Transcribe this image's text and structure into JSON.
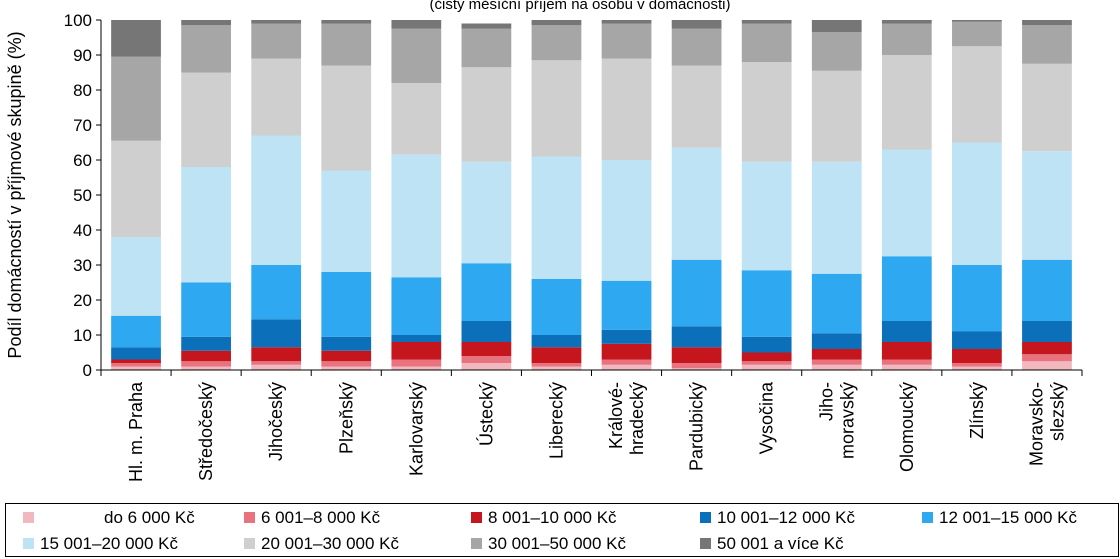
{
  "chart_data": {
    "type": "bar",
    "stacked": true,
    "subtitle": "(čistý měsíční příjem na osobu v domácnosti)",
    "ylabel": "Podíl domácností v příjmové skupině (%)",
    "xlabel": "",
    "ylim": [
      0,
      100
    ],
    "yticks": [
      0,
      10,
      20,
      30,
      40,
      50,
      60,
      70,
      80,
      90,
      100
    ],
    "grid": false,
    "legend_position": "bottom",
    "categories": [
      [
        "Hl. m. Praha"
      ],
      [
        "Středočeský"
      ],
      [
        "Jihočeský"
      ],
      [
        "Plzeňský"
      ],
      [
        "Karlovarský"
      ],
      [
        "Ústecký"
      ],
      [
        "Liberecký"
      ],
      [
        "Králové-",
        "hradecký"
      ],
      [
        "Pardubický"
      ],
      [
        "Vysočina"
      ],
      [
        "Jiho-",
        "moravský"
      ],
      [
        "Olomoucký"
      ],
      [
        "Zlínský"
      ],
      [
        "Moravsko-",
        "slezský"
      ]
    ],
    "series": [
      {
        "name": "do 6 000 Kč",
        "color": "#f2b8bf",
        "values": [
          1.0,
          1.0,
          1.5,
          1.0,
          1.0,
          2.0,
          1.0,
          1.5,
          0.5,
          1.5,
          1.5,
          1.5,
          1.0,
          2.5
        ]
      },
      {
        "name": "6 001–8 000 Kč",
        "color": "#e8737f",
        "values": [
          1.0,
          1.5,
          1.0,
          1.5,
          2.0,
          2.0,
          1.0,
          1.5,
          1.5,
          1.0,
          1.5,
          1.5,
          1.0,
          2.0
        ]
      },
      {
        "name": "8 001–10 000 Kč",
        "color": "#c4161c",
        "values": [
          1.0,
          3.0,
          4.0,
          3.0,
          5.0,
          4.0,
          4.5,
          4.5,
          4.5,
          2.5,
          3.0,
          5.0,
          4.0,
          3.5
        ]
      },
      {
        "name": "10 001–12 000 Kč",
        "color": "#0b6fba",
        "values": [
          3.5,
          4.0,
          8.0,
          4.0,
          2.0,
          6.0,
          3.5,
          4.0,
          6.0,
          4.5,
          4.5,
          6.0,
          5.0,
          6.0
        ]
      },
      {
        "name": "12 001–15 000 Kč",
        "color": "#2ea8f0",
        "values": [
          9.0,
          15.5,
          15.5,
          18.5,
          16.5,
          16.5,
          16.0,
          14.0,
          19.0,
          19.0,
          17.0,
          18.5,
          19.0,
          17.5
        ]
      },
      {
        "name": "15 001–20 000 Kč",
        "color": "#bde3f5",
        "values": [
          22.5,
          33.0,
          37.0,
          29.0,
          35.0,
          29.0,
          35.0,
          34.5,
          32.0,
          31.0,
          32.0,
          30.5,
          35.0,
          31.0
        ]
      },
      {
        "name": "20 001–30 000 Kč",
        "color": "#cfcfcf",
        "values": [
          27.5,
          27.0,
          22.0,
          30.0,
          20.5,
          27.0,
          27.5,
          29.0,
          23.5,
          28.5,
          26.0,
          27.0,
          27.5,
          25.0
        ]
      },
      {
        "name": "30 001–50 000 Kč",
        "color": "#a6a6a6",
        "values": [
          24.0,
          13.5,
          10.0,
          12.0,
          15.5,
          11.0,
          10.0,
          10.0,
          10.5,
          11.0,
          11.0,
          9.0,
          7.0,
          11.0
        ]
      },
      {
        "name": "50 001 a více Kč",
        "color": "#767676",
        "values": [
          10.5,
          1.5,
          1.0,
          1.0,
          2.5,
          1.5,
          1.5,
          1.0,
          2.5,
          1.0,
          3.5,
          1.0,
          0.5,
          1.5
        ]
      }
    ]
  }
}
